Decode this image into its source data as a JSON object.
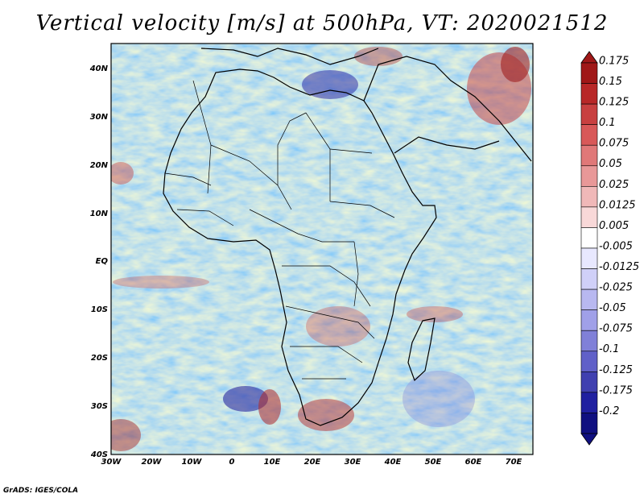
{
  "title": "Vertical velocity [m/s] at 500hPa, VT: 2020021512",
  "credit": "GrADS: IGES/COLA",
  "map": {
    "lat_labels": [
      "40N",
      "30N",
      "20N",
      "10N",
      "EQ",
      "10S",
      "20S",
      "30S",
      "40S"
    ],
    "lon_labels": [
      "30W",
      "20W",
      "10W",
      "0",
      "10E",
      "20E",
      "30E",
      "40E",
      "50E",
      "60E",
      "70E"
    ],
    "field_description": "500 hPa vertical velocity field over Africa"
  },
  "colorbar": {
    "labels": [
      "0.175",
      "0.15",
      "0.125",
      "0.1",
      "0.075",
      "0.05",
      "0.025",
      "0.0125",
      "0.005",
      "-0.005",
      "-0.0125",
      "-0.025",
      "-0.05",
      "-0.075",
      "-0.1",
      "-0.125",
      "-0.175",
      "-0.2"
    ],
    "colors": [
      "#a01818",
      "#b82828",
      "#c84040",
      "#d85858",
      "#e07878",
      "#e89898",
      "#f0b8b8",
      "#f8d8d8",
      "#ffffff",
      "#e8e8ff",
      "#d0d0f8",
      "#b8b8f0",
      "#a0a0e8",
      "#8080d8",
      "#6060c8",
      "#4040b0",
      "#2020a0",
      "#101080"
    ]
  }
}
